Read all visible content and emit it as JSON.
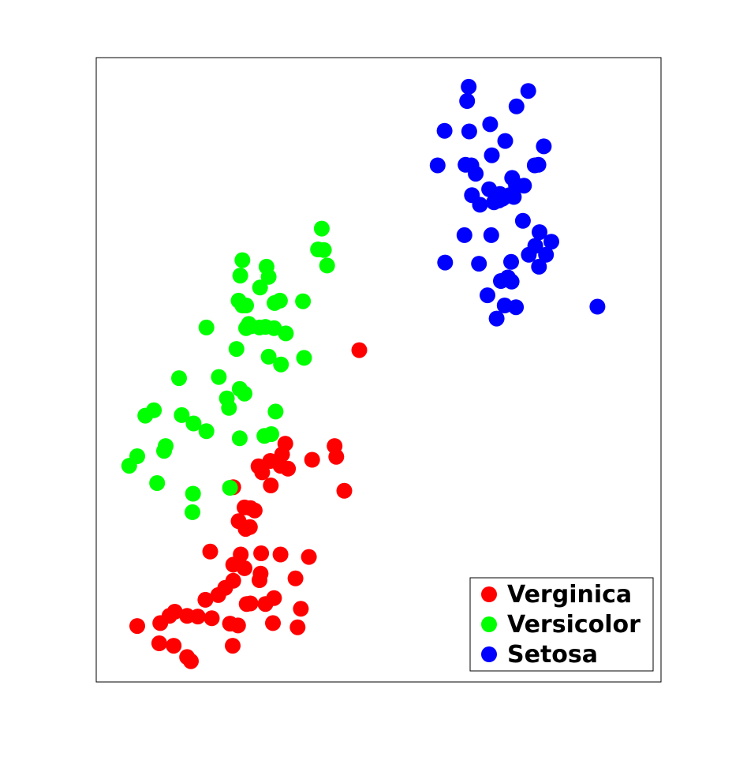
{
  "chart_data": {
    "type": "scatter",
    "title": "",
    "xlabel": "",
    "ylabel": "",
    "xlim": [
      0,
      100
    ],
    "ylim": [
      0,
      100
    ],
    "grid": false,
    "axes_ticks": false,
    "legend_position": "bottom-right",
    "series": [
      {
        "name": "Verginica",
        "color": "#ff0000",
        "points": [
          [
            46.4,
            53.3
          ],
          [
            41.8,
            37.2
          ],
          [
            42.1,
            35.4
          ],
          [
            37.6,
            34.9
          ],
          [
            43.6,
            29.7
          ],
          [
            32.6,
            37.6
          ],
          [
            32.0,
            35.8
          ],
          [
            29.8,
            34.7
          ],
          [
            33.1,
            33.4
          ],
          [
            31.7,
            33.9
          ],
          [
            28.3,
            32.8
          ],
          [
            27.6,
            33.8
          ],
          [
            29.9,
            30.6
          ],
          [
            22.9,
            30.3
          ],
          [
            25.0,
            26.9
          ],
          [
            26.9,
            26.4
          ],
          [
            26.1,
            26.8
          ],
          [
            23.9,
            24.6
          ],
          [
            26.0,
            23.6
          ],
          [
            25.2,
            23.3
          ],
          [
            18.6,
            19.5
          ],
          [
            24.3,
            19.0
          ],
          [
            28.1,
            19.2
          ],
          [
            31.7,
            19.0
          ],
          [
            37.0,
            18.6
          ],
          [
            22.9,
            17.3
          ],
          [
            25.0,
            16.7
          ],
          [
            28.0,
            15.8
          ],
          [
            34.5,
            15.0
          ],
          [
            27.8,
            14.7
          ],
          [
            22.9,
            14.6
          ],
          [
            21.4,
            13.4
          ],
          [
            20.1,
            12.2
          ],
          [
            17.7,
            11.4
          ],
          [
            25.4,
            10.7
          ],
          [
            28.9,
            10.7
          ],
          [
            30.5,
            11.7
          ],
          [
            35.5,
            9.9
          ],
          [
            26.1,
            10.8
          ],
          [
            12.0,
            9.4
          ],
          [
            11.0,
            8.7
          ],
          [
            14.3,
            8.7
          ],
          [
            16.3,
            8.6
          ],
          [
            18.9,
            8.3
          ],
          [
            9.3,
            7.5
          ],
          [
            5.0,
            7.0
          ],
          [
            22.3,
            7.4
          ],
          [
            23.8,
            7.1
          ],
          [
            30.3,
            7.5
          ],
          [
            34.9,
            6.8
          ],
          [
            9.1,
            4.1
          ],
          [
            11.8,
            3.7
          ],
          [
            22.8,
            3.7
          ],
          [
            14.3,
            1.8
          ],
          [
            15.0,
            1.1
          ]
        ]
      },
      {
        "name": "Versicolor",
        "color": "#00ff00",
        "points": [
          [
            39.4,
            73.7
          ],
          [
            38.7,
            70.2
          ],
          [
            39.8,
            70.1
          ],
          [
            40.4,
            67.5
          ],
          [
            24.6,
            68.4
          ],
          [
            29.1,
            67.3
          ],
          [
            24.2,
            65.8
          ],
          [
            29.5,
            65.6
          ],
          [
            27.9,
            63.8
          ],
          [
            23.9,
            61.6
          ],
          [
            24.6,
            60.8
          ],
          [
            25.3,
            60.8
          ],
          [
            31.6,
            61.6
          ],
          [
            30.6,
            61.2
          ],
          [
            35.9,
            61.5
          ],
          [
            25.3,
            57.0
          ],
          [
            26.2,
            57.3
          ],
          [
            25.8,
            57.7
          ],
          [
            17.9,
            57.1
          ],
          [
            27.8,
            57.1
          ],
          [
            28.9,
            57.2
          ],
          [
            30.5,
            57.0
          ],
          [
            32.7,
            56.1
          ],
          [
            23.5,
            53.5
          ],
          [
            29.5,
            52.2
          ],
          [
            36.1,
            52.0
          ],
          [
            31.8,
            50.9
          ],
          [
            12.8,
            48.6
          ],
          [
            20.2,
            48.8
          ],
          [
            24.1,
            46.8
          ],
          [
            25.0,
            46.0
          ],
          [
            21.7,
            45.2
          ],
          [
            22.1,
            43.6
          ],
          [
            8.1,
            43.2
          ],
          [
            6.5,
            42.3
          ],
          [
            13.3,
            42.4
          ],
          [
            15.5,
            41.0
          ],
          [
            30.8,
            43.0
          ],
          [
            17.9,
            39.7
          ],
          [
            24.1,
            38.5
          ],
          [
            30.0,
            39.2
          ],
          [
            28.7,
            38.9
          ],
          [
            5.0,
            35.5
          ],
          [
            10.0,
            36.4
          ],
          [
            10.3,
            37.2
          ],
          [
            3.5,
            33.9
          ],
          [
            8.7,
            31.0
          ],
          [
            22.3,
            30.2
          ],
          [
            15.4,
            29.2
          ],
          [
            15.3,
            26.1
          ]
        ]
      },
      {
        "name": "Setosa",
        "color": "#0000ff",
        "points": [
          [
            66.8,
            97.5
          ],
          [
            77.9,
            96.8
          ],
          [
            66.5,
            95.1
          ],
          [
            75.7,
            94.2
          ],
          [
            70.8,
            91.2
          ],
          [
            62.3,
            90.1
          ],
          [
            66.9,
            90.0
          ],
          [
            73.6,
            88.4
          ],
          [
            80.8,
            87.5
          ],
          [
            71.1,
            86.0
          ],
          [
            61.0,
            84.3
          ],
          [
            66.2,
            84.4
          ],
          [
            67.3,
            84.3
          ],
          [
            79.1,
            84.3
          ],
          [
            79.8,
            84.4
          ],
          [
            68.1,
            82.9
          ],
          [
            74.9,
            82.2
          ],
          [
            75.6,
            81.0
          ],
          [
            77.1,
            80.9
          ],
          [
            70.6,
            80.3
          ],
          [
            67.4,
            79.3
          ],
          [
            72.6,
            79.5
          ],
          [
            73.5,
            79.0
          ],
          [
            74.4,
            79.3
          ],
          [
            75.2,
            79.0
          ],
          [
            73.1,
            78.7
          ],
          [
            68.9,
            77.7
          ],
          [
            71.5,
            78.1
          ],
          [
            72.4,
            78.4
          ],
          [
            76.9,
            75.0
          ],
          [
            66.0,
            72.6
          ],
          [
            71.0,
            72.6
          ],
          [
            80.0,
            73.1
          ],
          [
            82.2,
            71.5
          ],
          [
            79.2,
            70.8
          ],
          [
            81.2,
            69.3
          ],
          [
            78.0,
            69.3
          ],
          [
            62.4,
            68.0
          ],
          [
            68.7,
            67.8
          ],
          [
            74.7,
            68.1
          ],
          [
            79.9,
            67.3
          ],
          [
            74.1,
            65.5
          ],
          [
            74.8,
            64.8
          ],
          [
            72.8,
            64.9
          ],
          [
            70.3,
            62.5
          ],
          [
            73.5,
            60.8
          ],
          [
            75.6,
            60.5
          ],
          [
            90.8,
            60.6
          ],
          [
            72.0,
            58.6
          ]
        ]
      }
    ]
  },
  "legend": {
    "items": [
      {
        "label": "Verginica",
        "color": "#ff0000"
      },
      {
        "label": "Versicolor",
        "color": "#00ff00"
      },
      {
        "label": "Setosa",
        "color": "#0000ff"
      }
    ]
  }
}
